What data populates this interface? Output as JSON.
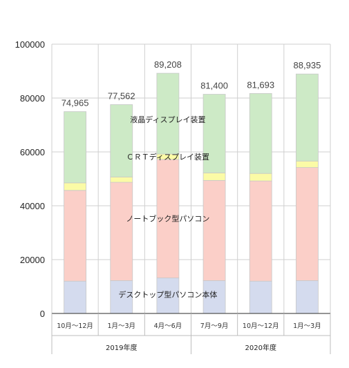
{
  "chart_data": {
    "type": "bar",
    "stacked": true,
    "categories": [
      "10月～12月",
      "1月～3月",
      "4月～6月",
      "7月～9月",
      "10月～12月",
      "1月～3月"
    ],
    "groups": [
      {
        "label": "2019年度",
        "span": [
          0,
          2
        ]
      },
      {
        "label": "2020年度",
        "span": [
          3,
          5
        ]
      }
    ],
    "series": [
      {
        "name": "デスクトップ型パソコン本体",
        "color": "#d4dbee",
        "values": [
          12000,
          12200,
          13200,
          12200,
          12000,
          12200
        ]
      },
      {
        "name": "ノートブック型パソコン",
        "color": "#fbcfc8",
        "values": [
          33700,
          36500,
          44000,
          37200,
          37200,
          42000
        ]
      },
      {
        "name": "ＣＲＴディスプレイ装置",
        "color": "#fbfba6",
        "values": [
          2800,
          2000,
          2000,
          2800,
          2800,
          2400
        ]
      },
      {
        "name": "液晶ディスプレイ装置",
        "color": "#cdeac6",
        "values": [
          26465,
          26862,
          30008,
          29200,
          29693,
          32335
        ]
      }
    ],
    "totals": [
      "74,965",
      "77,562",
      "89,208",
      "81,400",
      "81,693",
      "88,935"
    ],
    "highlight_index": 5,
    "highlight_color": "#ff2a2a",
    "ylim": [
      0,
      100000
    ],
    "yticks": [
      0,
      20000,
      40000,
      60000,
      80000,
      100000
    ],
    "grid": true
  }
}
